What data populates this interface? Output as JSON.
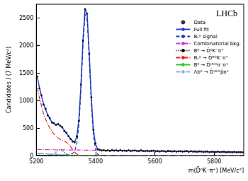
{
  "chart_data": {
    "type": "line",
    "title": "LHCb",
    "x_label": "m(D̄⁰K⁻π⁺) [MeV/c²]",
    "y_label": "Candidates / (7 MeV/c²)",
    "xlim": [
      5200,
      5900
    ],
    "xticks": [
      5200,
      5400,
      5600,
      5800
    ],
    "ylim": [
      0,
      2750
    ],
    "yticks": [
      0,
      500,
      1000,
      1500,
      2000,
      2500
    ],
    "legend": "upper right",
    "grid": false,
    "x": [
      5203.5,
      5210.5,
      5217.5,
      5224.5,
      5231.5,
      5238.5,
      5245.5,
      5252.5,
      5259.5,
      5266.5,
      5273.5,
      5280.5,
      5287.5,
      5294.5,
      5301.5,
      5308.5,
      5315.5,
      5322.5,
      5329.5,
      5336.5,
      5343.5,
      5350.5,
      5357.5,
      5364.5,
      5371.5,
      5378.5,
      5385.5,
      5392.5,
      5399.5,
      5406.5,
      5413.5,
      5420.5,
      5427.5,
      5434.5,
      5441.5,
      5448.5,
      5455.5,
      5462.5,
      5469.5,
      5476.5,
      5483.5,
      5490.5,
      5497.5,
      5504.5,
      5511.5,
      5518.5,
      5525.5,
      5532.5,
      5539.5,
      5546.5,
      5553.5,
      5560.5,
      5567.5,
      5574.5,
      5581.5,
      5588.5,
      5595.5,
      5602.5,
      5609.5,
      5616.5,
      5623.5,
      5630.5,
      5637.5,
      5644.5,
      5651.5,
      5658.5,
      5665.5,
      5672.5,
      5679.5,
      5686.5,
      5693.5,
      5700.5,
      5707.5,
      5714.5,
      5721.5,
      5728.5,
      5735.5,
      5742.5,
      5749.5,
      5756.5,
      5763.5,
      5770.5,
      5777.5,
      5784.5,
      5791.5,
      5798.5,
      5805.5,
      5812.5,
      5819.5,
      5826.5,
      5833.5,
      5840.5,
      5847.5,
      5854.5,
      5861.5,
      5868.5,
      5875.5,
      5882.5,
      5889.5,
      5896.5
    ],
    "series": [
      {
        "name": "Data",
        "type": "scatter",
        "marker": "circle",
        "color": "#000000",
        "values": [
          1435,
          1220,
          1095,
          925,
          850,
          730,
          680,
          600,
          590,
          555,
          575,
          540,
          515,
          445,
          415,
          350,
          300,
          255,
          240,
          350,
          630,
          1290,
          2090,
          2660,
          2580,
          1850,
          1060,
          470,
          220,
          115,
          104,
          92,
          100,
          88,
          96,
          84,
          101,
          90,
          95,
          83,
          99,
          87,
          90,
          84,
          95,
          80,
          89,
          92,
          83,
          80,
          95,
          84,
          80,
          88,
          79,
          85,
          90,
          76,
          84,
          75,
          86,
          79,
          72,
          85,
          80,
          74,
          83,
          71,
          78,
          81,
          70,
          77,
          82,
          68,
          79,
          70,
          75,
          67,
          77,
          73,
          64,
          72,
          75,
          62,
          71,
          67,
          63,
          74,
          61,
          68,
          70,
          58,
          66,
          63,
          59,
          67,
          57,
          64,
          60,
          58
        ]
      },
      {
        "name": "Full fit",
        "type": "line",
        "line_style": "solid",
        "color": "#2b3fd6",
        "values": [
          1418,
          1235,
          1080,
          936,
          833,
          741,
          668,
          611,
          577,
          565,
          563,
          548,
          508,
          458,
          406,
          360,
          306,
          263,
          246,
          346,
          644,
          1274,
          2109,
          2674,
          2568,
          1870,
          1049,
          480,
          211,
          122,
          99,
          96,
          94,
          94,
          93,
          93,
          92,
          92,
          91,
          91,
          90,
          90,
          89,
          89,
          88,
          88,
          87,
          87,
          86,
          86,
          85,
          85,
          84,
          84,
          83,
          83,
          82,
          82,
          81,
          81,
          80,
          80,
          79,
          79,
          78,
          78,
          77,
          77,
          76,
          76,
          75,
          75,
          74,
          74,
          73,
          73,
          72,
          72,
          71,
          71,
          70,
          70,
          69,
          69,
          68,
          68,
          67,
          67,
          66,
          66,
          65,
          65,
          64,
          64,
          63,
          63,
          62,
          62,
          61,
          61
        ]
      },
      {
        "name": "Bₛ⁰ signal",
        "type": "line",
        "line_style": "dashed",
        "color": "#1f3a9e",
        "values": [
          1,
          1,
          1,
          1,
          2,
          2,
          2,
          2,
          3,
          3,
          3,
          4,
          6,
          9,
          13,
          19,
          27,
          40,
          76,
          213,
          531,
          1171,
          2007,
          2573,
          2468,
          1771,
          951,
          383,
          115,
          26,
          4,
          1,
          0,
          0,
          0,
          0,
          0,
          0,
          0,
          0,
          0,
          0,
          0,
          0,
          0,
          0,
          0,
          0,
          0,
          0,
          0,
          0,
          0,
          0,
          0,
          0,
          0,
          0,
          0,
          0,
          0,
          0,
          0,
          0,
          0,
          0,
          0,
          0,
          0,
          0,
          0,
          0,
          0,
          0,
          0,
          0,
          0,
          0,
          0,
          0,
          0,
          0,
          0,
          0,
          0,
          0,
          0,
          0,
          0,
          0,
          0,
          0,
          0,
          0,
          0,
          0,
          0,
          0,
          0,
          0
        ]
      },
      {
        "name": "Combinatorial bkg.",
        "type": "line",
        "line_style": "dashdot",
        "color": "#cc33cc",
        "values": [
          110,
          110,
          109,
          109,
          108,
          108,
          107,
          107,
          106,
          106,
          105,
          105,
          104,
          104,
          103,
          103,
          102,
          102,
          101,
          101,
          100,
          100,
          99,
          99,
          98,
          98,
          97,
          97,
          96,
          96,
          95,
          95,
          94,
          94,
          93,
          93,
          92,
          92,
          91,
          91,
          90,
          90,
          89,
          89,
          88,
          88,
          87,
          87,
          86,
          86,
          85,
          85,
          84,
          84,
          83,
          83,
          82,
          82,
          81,
          81,
          80,
          80,
          79,
          79,
          78,
          78,
          77,
          77,
          76,
          76,
          75,
          75,
          74,
          74,
          73,
          73,
          72,
          72,
          71,
          71,
          70,
          70,
          69,
          69,
          68,
          68,
          67,
          67,
          66,
          66,
          65,
          65,
          64,
          64,
          63,
          63,
          62,
          62,
          61,
          61
        ]
      },
      {
        "name": "B⁰ → D̄⁰K⁻π⁺",
        "type": "line",
        "line_style": "dotted",
        "color": "#000000",
        "values": [
          2,
          2,
          2,
          2,
          3,
          5,
          6,
          12,
          32,
          64,
          97,
          110,
          93,
          59,
          28,
          10,
          3,
          0,
          0,
          0,
          0,
          0,
          0,
          0,
          0,
          0,
          0,
          0,
          0,
          0,
          0,
          0,
          0,
          0,
          0,
          0,
          0,
          0,
          0,
          0,
          0,
          0,
          0,
          0,
          0,
          0,
          0,
          0,
          0,
          0,
          0,
          0,
          0,
          0,
          0,
          0,
          0,
          0,
          0,
          0,
          0,
          0,
          0,
          0,
          0,
          0,
          0,
          0,
          0,
          0,
          0,
          0,
          0,
          0,
          0,
          0,
          0,
          0,
          0,
          0,
          0,
          0,
          0,
          0,
          0,
          0,
          0,
          0,
          0,
          0,
          0,
          0,
          0,
          0,
          0,
          0,
          0,
          0,
          0,
          0
        ]
      },
      {
        "name": "Bₛ⁰ → D̄*⁰K⁻π⁺",
        "type": "line",
        "line_style": "dashdot",
        "color": "#e02020",
        "values": [
          1230,
          1050,
          900,
          760,
          660,
          570,
          500,
          440,
          390,
          350,
          320,
          295,
          275,
          260,
          240,
          210,
          160,
          110,
          60,
          25,
          8,
          0,
          0,
          0,
          0,
          0,
          0,
          0,
          0,
          0,
          0,
          0,
          0,
          0,
          0,
          0,
          0,
          0,
          0,
          0,
          0,
          0,
          0,
          0,
          0,
          0,
          0,
          0,
          0,
          0,
          0,
          0,
          0,
          0,
          0,
          0,
          0,
          0,
          0,
          0,
          0,
          0,
          0,
          0,
          0,
          0,
          0,
          0,
          0,
          0,
          0,
          0,
          0,
          0,
          0,
          0,
          0,
          0,
          0,
          0,
          0,
          0,
          0,
          0,
          0,
          0,
          0,
          0,
          0,
          0,
          0,
          0,
          0,
          0,
          0,
          0,
          0,
          0,
          0,
          0
        ]
      },
      {
        "name": "B⁰ → D̄⁽*⁾⁰π⁻π⁺",
        "type": "line",
        "line_style": "longdash",
        "color": "#33c233",
        "values": [
          45,
          42,
          39,
          36,
          33,
          30,
          28,
          26,
          24,
          22,
          20,
          18,
          16,
          14,
          12,
          10,
          8,
          7,
          6,
          5,
          4,
          3,
          3,
          2,
          2,
          1,
          1,
          0,
          0,
          0,
          0,
          0,
          0,
          0,
          0,
          0,
          0,
          0,
          0,
          0,
          0,
          0,
          0,
          0,
          0,
          0,
          0,
          0,
          0,
          0,
          0,
          0,
          0,
          0,
          0,
          0,
          0,
          0,
          0,
          0,
          0,
          0,
          0,
          0,
          0,
          0,
          0,
          0,
          0,
          0,
          0,
          0,
          0,
          0,
          0,
          0,
          0,
          0,
          0,
          0,
          0,
          0,
          0,
          0,
          0,
          0,
          0,
          0,
          0,
          0,
          0,
          0,
          0,
          0,
          0,
          0,
          0,
          0,
          0,
          0
        ]
      },
      {
        "name": "Λb⁰ → D̄⁽*⁾⁰p̄π⁺",
        "type": "line",
        "line_style": "dashdotdot",
        "color": "#9fb0d0",
        "values": [
          30,
          30,
          29,
          28,
          27,
          26,
          25,
          24,
          22,
          20,
          18,
          16,
          14,
          12,
          10,
          8,
          6,
          4,
          3,
          2,
          1,
          0,
          0,
          0,
          0,
          0,
          0,
          0,
          0,
          0,
          0,
          0,
          0,
          0,
          0,
          0,
          0,
          0,
          0,
          0,
          0,
          0,
          0,
          0,
          0,
          0,
          0,
          0,
          0,
          0,
          0,
          0,
          0,
          0,
          0,
          0,
          0,
          0,
          0,
          0,
          0,
          0,
          0,
          0,
          0,
          0,
          0,
          0,
          0,
          0,
          0,
          0,
          0,
          0,
          0,
          0,
          0,
          0,
          0,
          0,
          0,
          0,
          0,
          0,
          0,
          0,
          0,
          0,
          0,
          0,
          0,
          0,
          0,
          0,
          0,
          0,
          0,
          0,
          0,
          0
        ]
      }
    ]
  }
}
